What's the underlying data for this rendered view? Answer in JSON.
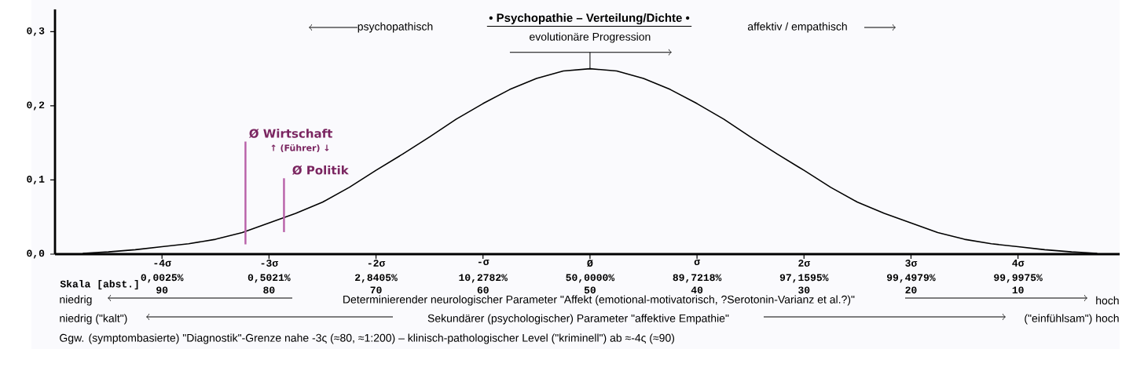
{
  "chart_data": {
    "type": "line",
    "title": "• Psychopathie – Verteilung/Dichte •",
    "x": [
      -4.74,
      -4.5,
      -4.25,
      -4,
      -3.75,
      -3.5,
      -3.25,
      -3,
      -2.75,
      -2.5,
      -2.25,
      -2,
      -1.75,
      -1.5,
      -1.25,
      -1,
      -0.75,
      -0.5,
      -0.25,
      0,
      0.25,
      0.5,
      0.75,
      1,
      1.25,
      1.5,
      1.75,
      2,
      2.25,
      2.5,
      2.75,
      3,
      3.25,
      3.5,
      3.75,
      4,
      4.25,
      4.5,
      4.74
    ],
    "series": [
      {
        "color": "#000000",
        "values": [
          0.001,
          0.003,
          0.006,
          0.01,
          0.014,
          0.02,
          0.029,
          0.042,
          0.055,
          0.07,
          0.09,
          0.113,
          0.135,
          0.158,
          0.182,
          0.203,
          0.222,
          0.237,
          0.247,
          0.25,
          0.247,
          0.237,
          0.222,
          0.203,
          0.182,
          0.158,
          0.135,
          0.113,
          0.09,
          0.07,
          0.055,
          0.042,
          0.029,
          0.02,
          0.014,
          0.01,
          0.006,
          0.003,
          0.001
        ]
      }
    ],
    "xlim": [
      -5,
      4.95
    ],
    "ylim": [
      0,
      0.33
    ],
    "yticks": [
      {
        "value": 0,
        "label": "0,0"
      },
      {
        "value": 0.1,
        "label": "0,1"
      },
      {
        "value": 0.2,
        "label": "0,2"
      },
      {
        "value": 0.3,
        "label": "0,3"
      }
    ],
    "xticks": [
      {
        "value": -4,
        "label": "-4σ"
      },
      {
        "value": -3,
        "label": "-3σ"
      },
      {
        "value": -2,
        "label": "-2σ"
      },
      {
        "value": -1,
        "label": "-σ"
      },
      {
        "value": 0,
        "label": "Ø"
      },
      {
        "value": 1,
        "label": "σ"
      },
      {
        "value": 2,
        "label": "2σ"
      },
      {
        "value": 3,
        "label": "3σ"
      },
      {
        "value": 4,
        "label": "4σ"
      }
    ],
    "ref_lines": [
      {
        "axis": "x",
        "value": -3.22,
        "label": "Ø Wirtschaft",
        "color": "#b860a8"
      },
      {
        "axis": "x",
        "value": -2.86,
        "label": "Ø Politik",
        "color": "#b860a8"
      }
    ],
    "annotations": [
      "psychopathisch",
      "affektiv / empathisch",
      {
        "text": "evolutionäre Progression",
        "x": 0,
        "y": 0.25
      },
      "↑ (Führer) ↓",
      "niedrig",
      "Determinierender neurologischer Parameter \"Affekt (emotional-motivatorisch, ?Serotonin-Varianz et al.?)\"",
      "hoch",
      "niedrig (\"kalt\")",
      "Sekundärer (psychologischer) Parameter \"affektive Empathie\"",
      "(\"einfühlsam\") hoch",
      "Ggw. (symptombasierte) \"Diagnostik\"-Grenze nahe -3ς (≈80, ≈1:200) – klinisch-pathologischer Level (\"kriminell\") ab ≈-4ς (≈90)",
      "0,0025%",
      "0,5021%",
      "2,8405%",
      "10,2782%",
      "50,0000%",
      "89,7218%",
      "97,1595%",
      "99,4979%",
      "99,9975%",
      "90",
      "80",
      "70",
      "60",
      "50",
      "40",
      "30",
      "20",
      "10",
      "Skala [abst.]"
    ]
  }
}
